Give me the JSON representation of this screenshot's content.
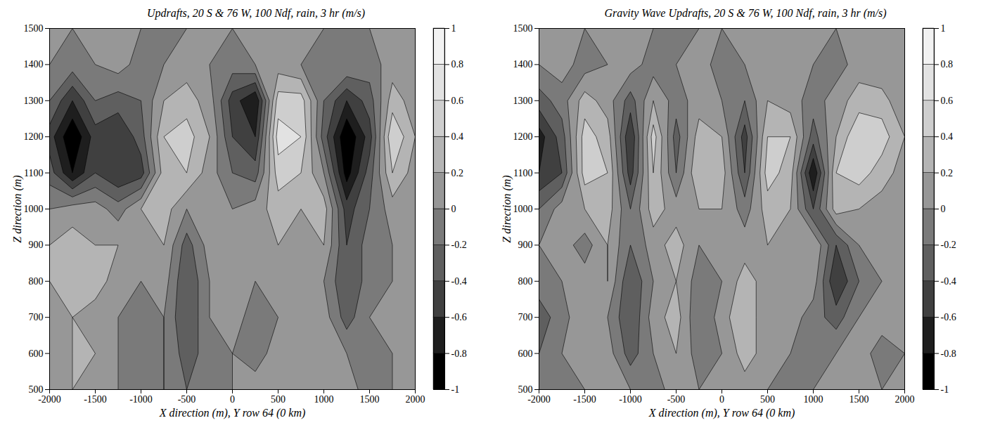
{
  "chart_data": [
    {
      "type": "contour",
      "title": "Updrafts, 20 S & 76 W, 100 Ndf, rain, 3 hr (m/s)",
      "x_label": "X direction (m), Y row 64 (0 km)",
      "y_label": "Z direction (m)",
      "xlim": [
        -2000,
        2000
      ],
      "ylim": [
        500,
        1500
      ],
      "xticks": [
        -2000,
        -1500,
        -1000,
        -500,
        0,
        500,
        1000,
        1500,
        2000
      ],
      "yticks": [
        500,
        600,
        700,
        800,
        900,
        1000,
        1100,
        1200,
        1300,
        1400,
        1500
      ],
      "x": [
        -2000,
        -1750,
        -1500,
        -1250,
        -1000,
        -750,
        -500,
        -250,
        0,
        250,
        500,
        750,
        1000,
        1250,
        1500,
        1750,
        2000
      ],
      "y": [
        500,
        600,
        700,
        800,
        900,
        1000,
        1100,
        1200,
        1300,
        1400,
        1500
      ],
      "values": [
        [
          0.1,
          0.2,
          0.1,
          0,
          -0.1,
          0,
          -0.2,
          -0.1,
          0,
          0.1,
          0,
          0,
          0,
          0.1,
          -0.1,
          0,
          0
        ],
        [
          0.1,
          0.2,
          0.2,
          0,
          -0.1,
          0,
          -0.3,
          -0.1,
          0,
          -0.1,
          0.1,
          0,
          0,
          0,
          -0.1,
          0,
          0
        ],
        [
          0,
          0.2,
          0.1,
          0,
          -0.1,
          0,
          -0.4,
          0,
          0.2,
          -0.2,
          0,
          0,
          0.1,
          -0.3,
          0,
          0,
          0
        ],
        [
          0.2,
          0.2,
          0.3,
          0.1,
          0,
          0.1,
          -0.4,
          0,
          0.1,
          0,
          0.1,
          0,
          0,
          -0.4,
          -0.1,
          0,
          0
        ],
        [
          0.2,
          0.3,
          0.2,
          0.2,
          0.1,
          0.2,
          -0.3,
          0.1,
          0,
          0.1,
          0.2,
          0.1,
          0.2,
          -0.4,
          -0.1,
          0,
          0
        ],
        [
          0,
          0.1,
          0.1,
          -0.1,
          0.2,
          0.3,
          0,
          0.2,
          0,
          0.1,
          0.3,
          0.2,
          0.3,
          -0.5,
          -0.2,
          0.1,
          0
        ],
        [
          -0.3,
          -0.8,
          -0.4,
          -0.6,
          -0.5,
          0.3,
          0.4,
          0.1,
          -0.2,
          -0.3,
          0.5,
          0.4,
          0,
          -0.9,
          -0.3,
          0.4,
          0.1
        ],
        [
          -0.5,
          -1,
          -0.5,
          -0.6,
          -0.3,
          0.4,
          0.5,
          0.2,
          -0.4,
          -0.6,
          0.7,
          0.6,
          -0.3,
          -1,
          -0.5,
          0.6,
          0.2
        ],
        [
          -0.2,
          -0.6,
          -0.2,
          -0.3,
          -0.2,
          0.2,
          0.3,
          0.1,
          -0.5,
          -0.8,
          0.5,
          0.5,
          -0.2,
          -0.6,
          -0.3,
          0.3,
          0.1
        ],
        [
          0,
          -0.1,
          0,
          0.1,
          -0.1,
          0,
          0.1,
          0,
          -0.1,
          0,
          0.1,
          0,
          -0.1,
          0,
          -0.1,
          0.1,
          0
        ],
        [
          0,
          0,
          0.1,
          0,
          0,
          -0.1,
          0,
          0.1,
          0,
          0,
          0,
          0.1,
          0,
          -0.1,
          0,
          0,
          0
        ]
      ],
      "colorbar": {
        "range": [
          -1,
          1
        ],
        "ticks": [
          -1,
          -0.8,
          -0.6,
          -0.4,
          -0.2,
          0,
          0.2,
          0.4,
          0.6,
          0.8,
          1
        ]
      }
    },
    {
      "type": "contour",
      "title": "Gravity Wave Updrafts, 20 S & 76 W, 100 Ndf, rain, 3 hr (m/s)",
      "x_label": "X direction (m), Y row 64 (0 km)",
      "y_label": "Z direction (m)",
      "xlim": [
        -2000,
        2000
      ],
      "ylim": [
        500,
        1500
      ],
      "xticks": [
        -2000,
        -1500,
        -1000,
        -500,
        0,
        500,
        1000,
        1500,
        2000
      ],
      "yticks": [
        500,
        600,
        700,
        800,
        900,
        1000,
        1100,
        1200,
        1300,
        1400,
        1500
      ],
      "x": [
        -2000,
        -1750,
        -1500,
        -1250,
        -1000,
        -750,
        -500,
        -250,
        0,
        250,
        500,
        750,
        1000,
        1250,
        1500,
        1750,
        2000
      ],
      "y": [
        500,
        600,
        700,
        800,
        900,
        1000,
        1100,
        1200,
        1300,
        1400,
        1500
      ],
      "values": [
        [
          0,
          -0.1,
          0,
          0.1,
          0,
          -0.1,
          0.1,
          0,
          0,
          0.1,
          0,
          -0.1,
          0,
          0.1,
          0,
          0,
          0
        ],
        [
          -0.2,
          0,
          0.2,
          0.1,
          -0.3,
          0,
          0.2,
          -0.1,
          0,
          0.3,
          0.1,
          0,
          -0.2,
          0,
          0.1,
          -0.1,
          0
        ],
        [
          -0.3,
          -0.1,
          0.2,
          0,
          -0.4,
          0.1,
          0.3,
          -0.2,
          0.1,
          0.4,
          0,
          0.1,
          -0.1,
          -0.3,
          0,
          0.1,
          0
        ],
        [
          -0.1,
          0,
          0.1,
          0.2,
          -0.4,
          0,
          0.2,
          -0.1,
          0,
          0.3,
          0.1,
          0,
          0.1,
          -0.6,
          -0.2,
          0,
          0.1
        ],
        [
          0,
          0.1,
          -0.1,
          0.2,
          -0.2,
          0.1,
          0.3,
          0,
          0.1,
          0.1,
          0.2,
          0,
          0.2,
          -0.4,
          0,
          0.1,
          0
        ],
        [
          -0.2,
          0.1,
          0.2,
          0.3,
          -0.2,
          0.3,
          0.1,
          0.2,
          0.2,
          -0.1,
          0.3,
          0.2,
          -0.4,
          0.3,
          0.2,
          0.1,
          0
        ],
        [
          -0.6,
          -0.4,
          0.5,
          0.4,
          -0.5,
          0.4,
          -0.2,
          0.4,
          0.3,
          -0.4,
          0.5,
          0.3,
          -0.8,
          0.4,
          0.5,
          0.3,
          0.1
        ],
        [
          -0.7,
          -0.3,
          0.5,
          0.3,
          -0.6,
          0.5,
          -0.3,
          0.3,
          0.2,
          -0.5,
          0.4,
          0.4,
          -0.3,
          0.2,
          0.6,
          0.5,
          0.2
        ],
        [
          -0.3,
          -0.1,
          0.3,
          0.1,
          -0.3,
          0.2,
          -0.1,
          0.1,
          0,
          -0.2,
          0.2,
          0.1,
          -0.1,
          0.1,
          0.3,
          0.3,
          0
        ],
        [
          0,
          0.1,
          -0.1,
          0,
          0.1,
          -0.1,
          0,
          0.1,
          -0.1,
          0,
          0.1,
          0,
          0,
          -0.1,
          0.1,
          0,
          0
        ],
        [
          0,
          0,
          0,
          0.1,
          0,
          0,
          -0.1,
          0,
          0,
          0,
          0,
          0.1,
          0,
          0,
          0,
          0,
          0
        ]
      ],
      "colorbar": {
        "range": [
          -1,
          1
        ],
        "ticks": [
          -1,
          -0.8,
          -0.6,
          -0.4,
          -0.2,
          0,
          0.2,
          0.4,
          0.6,
          0.8,
          1
        ]
      }
    }
  ]
}
